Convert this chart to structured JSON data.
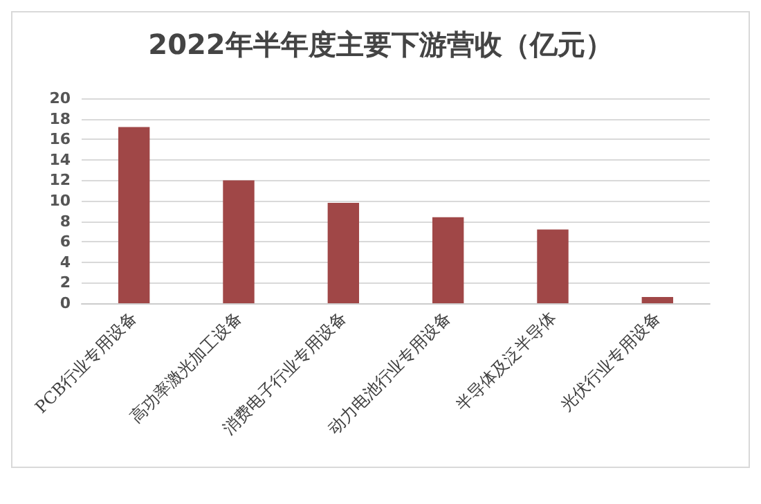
{
  "chart_data": {
    "type": "bar",
    "title": "2022年半年度主要下游营收（亿元）",
    "categories": [
      "PCB行业专用设备",
      "高功率激光加工设备",
      "消费电子行业专用设备",
      "动力电池行业专用设备",
      "半导体及泛半导体",
      "光伏行业专用设备"
    ],
    "values": [
      17.2,
      12.0,
      9.8,
      8.4,
      7.2,
      0.6
    ],
    "color": "#a04747",
    "ylim": [
      0,
      20
    ],
    "yticks": [
      0,
      2,
      4,
      6,
      8,
      10,
      12,
      14,
      16,
      18,
      20
    ],
    "grid": "y"
  }
}
